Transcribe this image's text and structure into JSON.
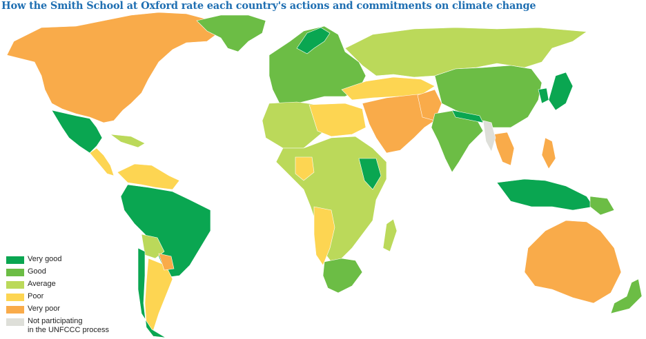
{
  "title": "How the Smith School at Oxford rate each country's actions and commitments on climate change",
  "colors": {
    "very_good": "#0aa651",
    "good": "#6cbd45",
    "average": "#bbd95a",
    "poor": "#fdd552",
    "very_poor": "#f9ab4a",
    "not_participating": "#dedfd9"
  },
  "legend": {
    "items": [
      {
        "key": "very_good",
        "label": "Very good"
      },
      {
        "key": "good",
        "label": "Good"
      },
      {
        "key": "average",
        "label": "Average"
      },
      {
        "key": "poor",
        "label": "Poor"
      },
      {
        "key": "very_poor",
        "label": "Very poor"
      }
    ],
    "not_participating": {
      "key": "not_participating",
      "line1": "Not participating",
      "line2": "in the UNFCCC process"
    }
  }
}
